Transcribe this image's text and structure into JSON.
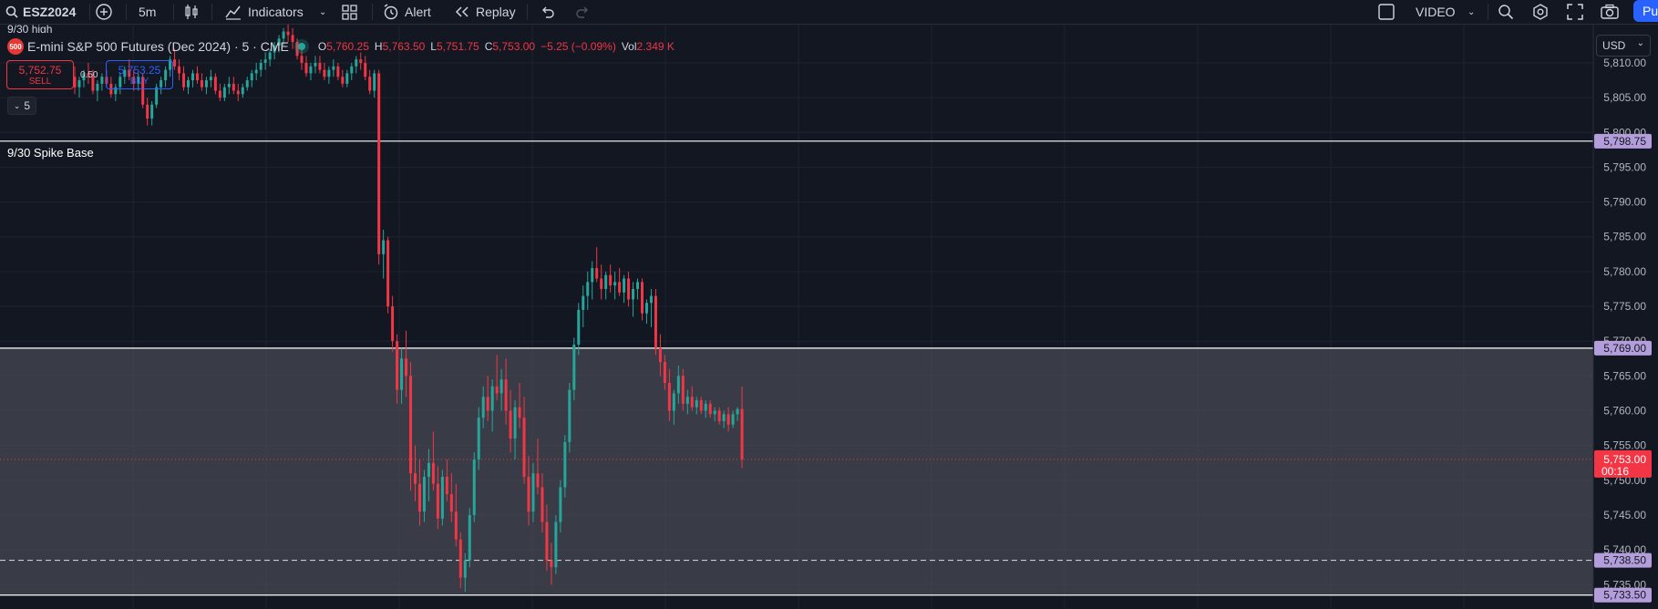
{
  "toolbar": {
    "symbol": "ESZ2024",
    "interval": "5m",
    "indicators_label": "Indicators",
    "alert_label": "Alert",
    "replay_label": "Replay",
    "video_label": "VIDEO",
    "publish_label": "Pu"
  },
  "legend": {
    "badge": "500",
    "title": "E-mini S&P 500 Futures (Dec 2024) · 5 · CME",
    "o_key": "O",
    "o": "5,760.25",
    "h_key": "H",
    "h": "5,763.50",
    "l_key": "L",
    "l": "5,751.75",
    "c_key": "C",
    "c": "5,753.00",
    "change": "−5.25 (−0.09%)",
    "vol_key": "Vol",
    "vol": "2.349 K"
  },
  "trade": {
    "sell_price": "5,752.75",
    "sell_label": "SELL",
    "buy_price": "5,753.25",
    "buy_label": "BUY",
    "spread": "0.50",
    "collapse_count": "5"
  },
  "currency": "USD",
  "top_partial_label": "9/30 high",
  "colors": {
    "bg": "#131722",
    "up": "#26a69a",
    "down": "#f23645",
    "grid": "#1f2330",
    "zone": "#4a4d55",
    "accent": "#2962ff",
    "level_label": "#b39ddb"
  },
  "chart_data": {
    "type": "candlestick",
    "ylim": [
      5731.5,
      5815.5
    ],
    "axis_ticks": [
      5735,
      5740,
      5745,
      5750,
      5755,
      5760,
      5765,
      5770,
      5775,
      5780,
      5785,
      5790,
      5795,
      5800,
      5805,
      5810
    ],
    "current_price": {
      "value": 5753.0,
      "label": "5,753.00",
      "countdown": "00:16"
    },
    "levels": [
      {
        "value": 5798.75,
        "label": "5,798.75",
        "name": "9/30 Spike Base",
        "style": "solid"
      },
      {
        "value": 5769.0,
        "label": "5,769.00",
        "name": "",
        "style": "solid"
      },
      {
        "value": 5738.5,
        "label": "5,738.50",
        "name": "",
        "style": "dashed"
      },
      {
        "value": 5733.5,
        "label": "5,733.50",
        "name": "",
        "style": "solid"
      }
    ],
    "zone": {
      "from": 5733.5,
      "to": 5769.0
    },
    "ohlc": [
      [
        5808.0,
        5809.5,
        5805.5,
        5806.5
      ],
      [
        5806.5,
        5808.0,
        5805.0,
        5807.5
      ],
      [
        5807.5,
        5809.0,
        5806.5,
        5808.5
      ],
      [
        5808.5,
        5810.0,
        5807.0,
        5808.0
      ],
      [
        5808.0,
        5809.0,
        5805.5,
        5806.0
      ],
      [
        5806.0,
        5807.5,
        5804.5,
        5807.0
      ],
      [
        5807.0,
        5808.5,
        5806.0,
        5808.0
      ],
      [
        5808.0,
        5809.0,
        5806.5,
        5807.0
      ],
      [
        5807.0,
        5808.0,
        5805.0,
        5805.5
      ],
      [
        5805.5,
        5807.0,
        5804.5,
        5806.5
      ],
      [
        5806.5,
        5808.5,
        5805.5,
        5808.0
      ],
      [
        5808.0,
        5809.5,
        5807.0,
        5809.0
      ],
      [
        5809.0,
        5810.5,
        5807.5,
        5808.0
      ],
      [
        5808.0,
        5809.0,
        5806.0,
        5807.0
      ],
      [
        5807.0,
        5808.5,
        5806.0,
        5808.0
      ],
      [
        5808.0,
        5808.5,
        5803.5,
        5804.0
      ],
      [
        5804.0,
        5805.0,
        5801.0,
        5802.0
      ],
      [
        5802.0,
        5804.5,
        5801.0,
        5804.0
      ],
      [
        5804.0,
        5807.0,
        5803.5,
        5806.5
      ],
      [
        5806.5,
        5808.0,
        5805.5,
        5807.5
      ],
      [
        5807.5,
        5809.5,
        5806.5,
        5809.0
      ],
      [
        5809.0,
        5811.0,
        5808.0,
        5810.5
      ],
      [
        5810.5,
        5812.0,
        5809.0,
        5809.5
      ],
      [
        5809.5,
        5810.5,
        5807.5,
        5808.5
      ],
      [
        5808.5,
        5809.5,
        5806.0,
        5806.5
      ],
      [
        5806.5,
        5808.0,
        5805.5,
        5807.5
      ],
      [
        5807.5,
        5809.0,
        5806.5,
        5808.5
      ],
      [
        5808.5,
        5809.5,
        5807.0,
        5807.5
      ],
      [
        5807.5,
        5808.5,
        5806.0,
        5806.5
      ],
      [
        5806.5,
        5808.0,
        5805.5,
        5807.5
      ],
      [
        5807.5,
        5809.0,
        5806.5,
        5808.0
      ],
      [
        5808.0,
        5808.5,
        5805.5,
        5806.0
      ],
      [
        5806.0,
        5807.0,
        5804.5,
        5805.0
      ],
      [
        5805.0,
        5807.0,
        5804.5,
        5806.5
      ],
      [
        5806.5,
        5808.0,
        5805.5,
        5807.0
      ],
      [
        5807.0,
        5808.0,
        5805.5,
        5806.0
      ],
      [
        5806.0,
        5807.0,
        5804.5,
        5805.5
      ],
      [
        5805.5,
        5807.0,
        5805.0,
        5806.5
      ],
      [
        5806.5,
        5808.0,
        5806.0,
        5807.5
      ],
      [
        5807.5,
        5809.0,
        5806.5,
        5808.5
      ],
      [
        5808.5,
        5810.0,
        5807.5,
        5809.0
      ],
      [
        5809.0,
        5810.5,
        5808.0,
        5810.0
      ],
      [
        5810.0,
        5811.5,
        5809.0,
        5810.5
      ],
      [
        5810.5,
        5812.0,
        5809.5,
        5811.5
      ],
      [
        5811.5,
        5813.0,
        5810.5,
        5812.5
      ],
      [
        5812.5,
        5814.0,
        5811.5,
        5813.5
      ],
      [
        5813.5,
        5815.0,
        5812.5,
        5814.5
      ],
      [
        5814.5,
        5815.5,
        5813.0,
        5814.0
      ],
      [
        5814.0,
        5815.0,
        5812.0,
        5813.0
      ],
      [
        5813.0,
        5813.5,
        5810.5,
        5811.0
      ],
      [
        5811.0,
        5812.0,
        5809.0,
        5810.0
      ],
      [
        5810.0,
        5811.0,
        5808.0,
        5808.5
      ],
      [
        5808.5,
        5810.0,
        5807.5,
        5809.5
      ],
      [
        5809.5,
        5811.0,
        5808.5,
        5810.0
      ],
      [
        5810.0,
        5811.0,
        5808.5,
        5809.0
      ],
      [
        5809.0,
        5810.0,
        5807.5,
        5808.0
      ],
      [
        5808.0,
        5809.5,
        5807.0,
        5809.0
      ],
      [
        5809.0,
        5810.5,
        5808.0,
        5809.5
      ],
      [
        5809.5,
        5810.0,
        5807.5,
        5808.0
      ],
      [
        5808.0,
        5809.0,
        5806.5,
        5807.0
      ],
      [
        5807.0,
        5809.0,
        5806.5,
        5808.5
      ],
      [
        5808.5,
        5810.0,
        5807.5,
        5809.5
      ],
      [
        5809.5,
        5811.0,
        5808.5,
        5810.5
      ],
      [
        5810.5,
        5811.5,
        5809.0,
        5810.0
      ],
      [
        5810.0,
        5811.0,
        5807.5,
        5808.0
      ],
      [
        5808.0,
        5809.0,
        5805.5,
        5806.0
      ],
      [
        5806.0,
        5809.0,
        5805.0,
        5808.5
      ],
      [
        5808.5,
        5809.0,
        5781.0,
        5782.5
      ],
      [
        5782.5,
        5786.0,
        5779.0,
        5784.5
      ],
      [
        5784.5,
        5785.0,
        5774.0,
        5775.0
      ],
      [
        5775.0,
        5776.5,
        5768.5,
        5770.0
      ],
      [
        5770.0,
        5771.0,
        5761.0,
        5763.0
      ],
      [
        5763.0,
        5769.0,
        5761.0,
        5767.5
      ],
      [
        5767.5,
        5771.5,
        5762.0,
        5765.0
      ],
      [
        5765.0,
        5767.0,
        5748.5,
        5751.0
      ],
      [
        5751.0,
        5755.0,
        5747.0,
        5749.5
      ],
      [
        5749.5,
        5753.0,
        5743.5,
        5745.5
      ],
      [
        5745.5,
        5751.5,
        5744.0,
        5750.5
      ],
      [
        5750.5,
        5754.5,
        5747.0,
        5752.5
      ],
      [
        5752.5,
        5757.0,
        5748.5,
        5749.5
      ],
      [
        5749.5,
        5752.0,
        5743.0,
        5744.5
      ],
      [
        5744.5,
        5751.5,
        5743.5,
        5750.5
      ],
      [
        5750.5,
        5753.0,
        5747.0,
        5748.0
      ],
      [
        5748.0,
        5751.0,
        5744.0,
        5745.5
      ],
      [
        5745.5,
        5749.5,
        5740.5,
        5741.5
      ],
      [
        5741.5,
        5742.5,
        5734.5,
        5736.0
      ],
      [
        5736.0,
        5739.5,
        5734.0,
        5738.5
      ],
      [
        5738.5,
        5746.0,
        5737.5,
        5745.0
      ],
      [
        5745.0,
        5754.0,
        5744.0,
        5753.0
      ],
      [
        5753.0,
        5760.5,
        5751.5,
        5759.0
      ],
      [
        5759.0,
        5763.5,
        5757.5,
        5762.0
      ],
      [
        5762.0,
        5765.0,
        5758.5,
        5760.0
      ],
      [
        5760.0,
        5764.5,
        5757.0,
        5763.5
      ],
      [
        5763.5,
        5768.0,
        5761.5,
        5762.5
      ],
      [
        5762.5,
        5766.0,
        5760.0,
        5764.5
      ],
      [
        5764.5,
        5767.5,
        5758.0,
        5760.0
      ],
      [
        5760.0,
        5763.0,
        5754.0,
        5756.0
      ],
      [
        5756.0,
        5761.5,
        5753.0,
        5760.5
      ],
      [
        5760.5,
        5764.0,
        5757.5,
        5759.0
      ],
      [
        5759.0,
        5762.0,
        5749.5,
        5750.5
      ],
      [
        5750.5,
        5753.5,
        5743.5,
        5745.5
      ],
      [
        5745.5,
        5752.5,
        5744.0,
        5751.0
      ],
      [
        5751.0,
        5756.0,
        5748.0,
        5749.0
      ],
      [
        5749.0,
        5751.0,
        5742.5,
        5744.0
      ],
      [
        5744.0,
        5746.5,
        5737.0,
        5738.5
      ],
      [
        5738.5,
        5741.0,
        5735.0,
        5737.5
      ],
      [
        5737.5,
        5745.0,
        5736.5,
        5744.0
      ],
      [
        5744.0,
        5750.0,
        5742.5,
        5749.0
      ],
      [
        5749.0,
        5756.5,
        5747.5,
        5755.5
      ],
      [
        5755.5,
        5764.0,
        5754.0,
        5763.0
      ],
      [
        5763.0,
        5770.5,
        5761.5,
        5769.5
      ],
      [
        5769.5,
        5775.5,
        5768.0,
        5774.5
      ],
      [
        5774.5,
        5778.0,
        5772.0,
        5776.5
      ],
      [
        5776.5,
        5780.0,
        5774.5,
        5778.5
      ],
      [
        5778.5,
        5781.5,
        5776.0,
        5780.5
      ],
      [
        5780.5,
        5783.5,
        5778.5,
        5779.0
      ],
      [
        5779.0,
        5781.0,
        5776.0,
        5777.5
      ],
      [
        5777.5,
        5780.0,
        5776.0,
        5779.5
      ],
      [
        5779.5,
        5781.0,
        5777.0,
        5778.0
      ],
      [
        5778.0,
        5780.0,
        5776.0,
        5778.5
      ],
      [
        5778.5,
        5780.5,
        5776.5,
        5777.0
      ],
      [
        5777.0,
        5779.5,
        5775.5,
        5779.0
      ],
      [
        5779.0,
        5780.0,
        5775.0,
        5776.0
      ],
      [
        5776.0,
        5778.5,
        5773.5,
        5777.5
      ],
      [
        5777.5,
        5779.0,
        5776.0,
        5778.5
      ],
      [
        5778.5,
        5779.0,
        5773.0,
        5774.0
      ],
      [
        5774.0,
        5776.0,
        5772.5,
        5775.5
      ],
      [
        5775.5,
        5777.5,
        5772.0,
        5776.5
      ],
      [
        5776.5,
        5777.5,
        5768.0,
        5769.0
      ],
      [
        5769.0,
        5771.0,
        5765.0,
        5767.0
      ],
      [
        5767.0,
        5768.0,
        5763.0,
        5764.0
      ],
      [
        5764.0,
        5766.0,
        5758.5,
        5760.0
      ],
      [
        5760.0,
        5763.0,
        5758.0,
        5762.5
      ],
      [
        5762.5,
        5766.5,
        5761.0,
        5765.0
      ],
      [
        5765.0,
        5766.0,
        5760.0,
        5761.0
      ],
      [
        5761.0,
        5763.0,
        5759.5,
        5762.0
      ],
      [
        5762.0,
        5763.5,
        5760.0,
        5760.5
      ],
      [
        5760.5,
        5762.0,
        5759.5,
        5761.5
      ],
      [
        5761.5,
        5762.0,
        5759.5,
        5760.0
      ],
      [
        5760.0,
        5761.5,
        5759.0,
        5761.0
      ],
      [
        5761.0,
        5761.5,
        5759.0,
        5759.5
      ],
      [
        5759.5,
        5760.5,
        5758.5,
        5760.0
      ],
      [
        5760.0,
        5760.5,
        5758.0,
        5758.5
      ],
      [
        5758.5,
        5760.0,
        5757.5,
        5759.5
      ],
      [
        5759.5,
        5760.5,
        5757.0,
        5758.0
      ],
      [
        5758.0,
        5760.0,
        5757.5,
        5759.5
      ],
      [
        5759.5,
        5760.5,
        5758.5,
        5760.25
      ],
      [
        5760.25,
        5763.5,
        5751.75,
        5753.0
      ]
    ]
  }
}
